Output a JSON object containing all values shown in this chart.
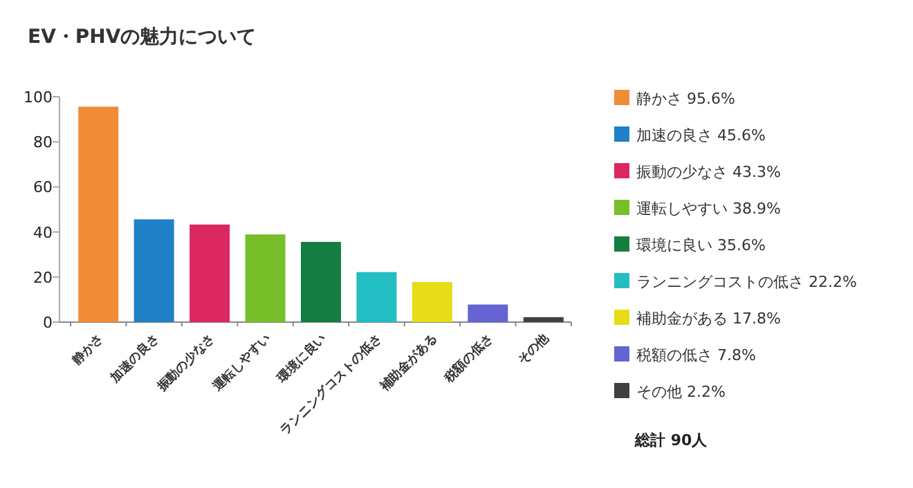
{
  "chart_data": {
    "type": "bar",
    "title": "EV・PHVの魅力について",
    "categories": [
      "静かさ",
      "加速の良さ",
      "振動の少なさ",
      "運転しやすい",
      "環境に良い",
      "ランニングコストの低さ",
      "補助金がある",
      "税額の低さ",
      "その他"
    ],
    "stacked": true,
    "series": [
      {
        "name": "静かさ 95.6%",
        "color": "#f08c35",
        "values": [
          95.6,
          null,
          null,
          null,
          null,
          null,
          null,
          null,
          null
        ]
      },
      {
        "name": "加速の良さ 45.6%",
        "color": "#2080c8",
        "values": [
          null,
          45.6,
          null,
          null,
          null,
          null,
          null,
          null,
          null
        ]
      },
      {
        "name": "振動の少なさ 43.3%",
        "color": "#dc2860",
        "values": [
          null,
          null,
          43.3,
          null,
          null,
          null,
          null,
          null,
          null
        ]
      },
      {
        "name": "運転しやすい 38.9%",
        "color": "#78be28",
        "values": [
          null,
          null,
          null,
          38.9,
          null,
          null,
          null,
          null,
          null
        ]
      },
      {
        "name": "環境に良い 35.6%",
        "color": "#147d41",
        "values": [
          null,
          null,
          null,
          null,
          35.6,
          null,
          null,
          null,
          null
        ]
      },
      {
        "name": "ランニングコストの低さ 22.2%",
        "color": "#23bec3",
        "values": [
          null,
          null,
          null,
          null,
          null,
          22.2,
          null,
          null,
          null
        ]
      },
      {
        "name": "補助金がある 17.8%",
        "color": "#e8dc19",
        "values": [
          null,
          null,
          null,
          null,
          null,
          null,
          17.8,
          null,
          null
        ]
      },
      {
        "name": "税額の低さ 7.8%",
        "color": "#6464d2",
        "values": [
          null,
          null,
          null,
          null,
          null,
          null,
          null,
          7.8,
          null
        ]
      },
      {
        "name": "その他 2.2%",
        "color": "#404040",
        "values": [
          null,
          null,
          null,
          null,
          null,
          null,
          null,
          null,
          2.2
        ]
      }
    ],
    "ylim": [
      0,
      100
    ],
    "yticks": [
      0,
      20,
      40,
      60,
      80,
      100
    ],
    "grid": false,
    "legend": "right",
    "annotations": [
      "総計 90人"
    ]
  }
}
